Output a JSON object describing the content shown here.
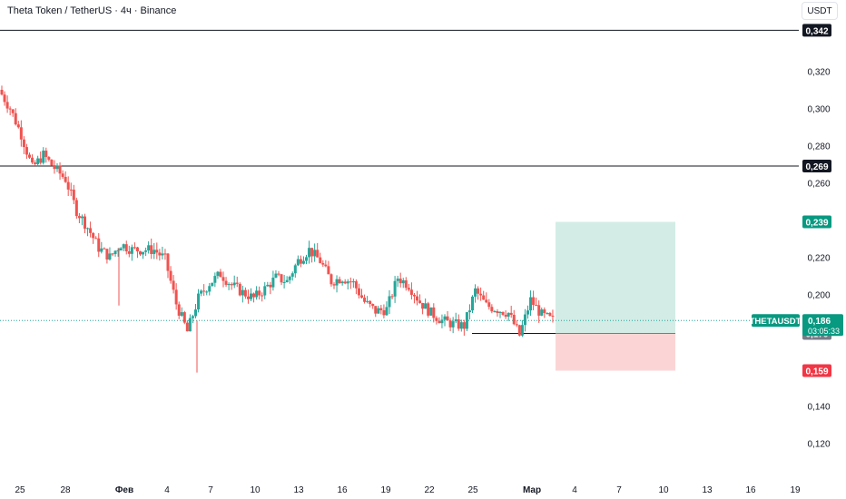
{
  "header": {
    "title": "Theta Token / TetherUS · 4ч · Binance",
    "currency_button": "USDT"
  },
  "symbol_tag": {
    "symbol": "THETAUSDT",
    "price": "0,186",
    "countdown": "03:05:33"
  },
  "colors": {
    "up": "#26a69a",
    "down": "#ef5350",
    "target_zone": "#d3ece6",
    "stop_zone": "#fbd5d5",
    "line": "#131722",
    "price_tag": "#089981",
    "stop_tag": "#f23645",
    "entry_tag": "#787b86"
  },
  "chart_data": {
    "type": "candlestick",
    "y_axis_ticks": [
      "0,120",
      "0,140",
      "0,160",
      "0,180",
      "0,200",
      "0,220",
      "0,240",
      "0,260",
      "0,280",
      "0,300",
      "0,320"
    ],
    "x_axis_labels": [
      "25",
      "28",
      "Фев",
      "4",
      "7",
      "10",
      "13",
      "16",
      "19",
      "22",
      "25",
      "Мар",
      "4",
      "7",
      "10",
      "13",
      "16",
      "19"
    ],
    "horizontal_levels": [
      {
        "value": 0.342,
        "label": "0,342",
        "tag": "black"
      },
      {
        "value": 0.269,
        "label": "0,269",
        "tag": "black"
      }
    ],
    "current_price": {
      "value": 0.186,
      "label": "0,186"
    },
    "position": {
      "entry": {
        "value": 0.179,
        "label": "0,179"
      },
      "target": {
        "value": 0.239,
        "label": "0,239"
      },
      "stop": {
        "value": 0.159,
        "label": "0,159"
      }
    },
    "support_line_value": 0.179,
    "price_path": [
      {
        "date": "24 Jan",
        "close": 0.31
      },
      {
        "date": "25 Jan",
        "close": 0.3
      },
      {
        "date": "26 Jan",
        "close": 0.286
      },
      {
        "date": "26 Jan",
        "close": 0.268
      },
      {
        "date": "27 Jan",
        "close": 0.275
      },
      {
        "date": "28 Jan",
        "close": 0.268
      },
      {
        "date": "29 Jan",
        "close": 0.262
      },
      {
        "date": "30 Jan",
        "close": 0.245
      },
      {
        "date": "31 Jan",
        "close": 0.236
      },
      {
        "date": "31 Jan",
        "close": 0.225
      },
      {
        "date": "1 Feb",
        "close": 0.22
      },
      {
        "date": "1 Feb",
        "close": 0.227
      },
      {
        "date": "2 Feb",
        "close": 0.224
      },
      {
        "date": "3 Feb",
        "close": 0.224
      },
      {
        "date": "4 Feb",
        "close": 0.224
      },
      {
        "date": "5 Feb",
        "close": 0.219
      },
      {
        "date": "6 Feb",
        "close": 0.195
      },
      {
        "date": "6 Feb",
        "close": 0.18
      },
      {
        "date": "7 Feb",
        "close": 0.198
      },
      {
        "date": "8 Feb",
        "close": 0.206
      },
      {
        "date": "8 Feb",
        "close": 0.211
      },
      {
        "date": "9 Feb",
        "close": 0.205
      },
      {
        "date": "10 Feb",
        "close": 0.201
      },
      {
        "date": "11 Feb",
        "close": 0.198
      },
      {
        "date": "12 Feb",
        "close": 0.203
      },
      {
        "date": "12 Feb",
        "close": 0.209
      },
      {
        "date": "13 Feb",
        "close": 0.207
      },
      {
        "date": "14 Feb",
        "close": 0.218
      },
      {
        "date": "14 Feb",
        "close": 0.224
      },
      {
        "date": "15 Feb",
        "close": 0.218
      },
      {
        "date": "16 Feb",
        "close": 0.207
      },
      {
        "date": "17 Feb",
        "close": 0.209
      },
      {
        "date": "18 Feb",
        "close": 0.206
      },
      {
        "date": "19 Feb",
        "close": 0.196
      },
      {
        "date": "19 Feb",
        "close": 0.191
      },
      {
        "date": "20 Feb",
        "close": 0.192
      },
      {
        "date": "21 Feb",
        "close": 0.209
      },
      {
        "date": "21 Feb",
        "close": 0.205
      },
      {
        "date": "22 Feb",
        "close": 0.196
      },
      {
        "date": "23 Feb",
        "close": 0.19
      },
      {
        "date": "24 Feb",
        "close": 0.186
      },
      {
        "date": "25 Feb",
        "close": 0.184
      },
      {
        "date": "25 Feb",
        "close": 0.183
      },
      {
        "date": "26 Feb",
        "close": 0.202
      },
      {
        "date": "26 Feb",
        "close": 0.194
      },
      {
        "date": "27 Feb",
        "close": 0.192
      },
      {
        "date": "28 Feb",
        "close": 0.19
      },
      {
        "date": "28 Feb",
        "close": 0.178
      },
      {
        "date": "1 Mar",
        "close": 0.197
      },
      {
        "date": "2 Mar",
        "close": 0.189
      },
      {
        "date": "2 Mar",
        "close": 0.186
      }
    ]
  }
}
